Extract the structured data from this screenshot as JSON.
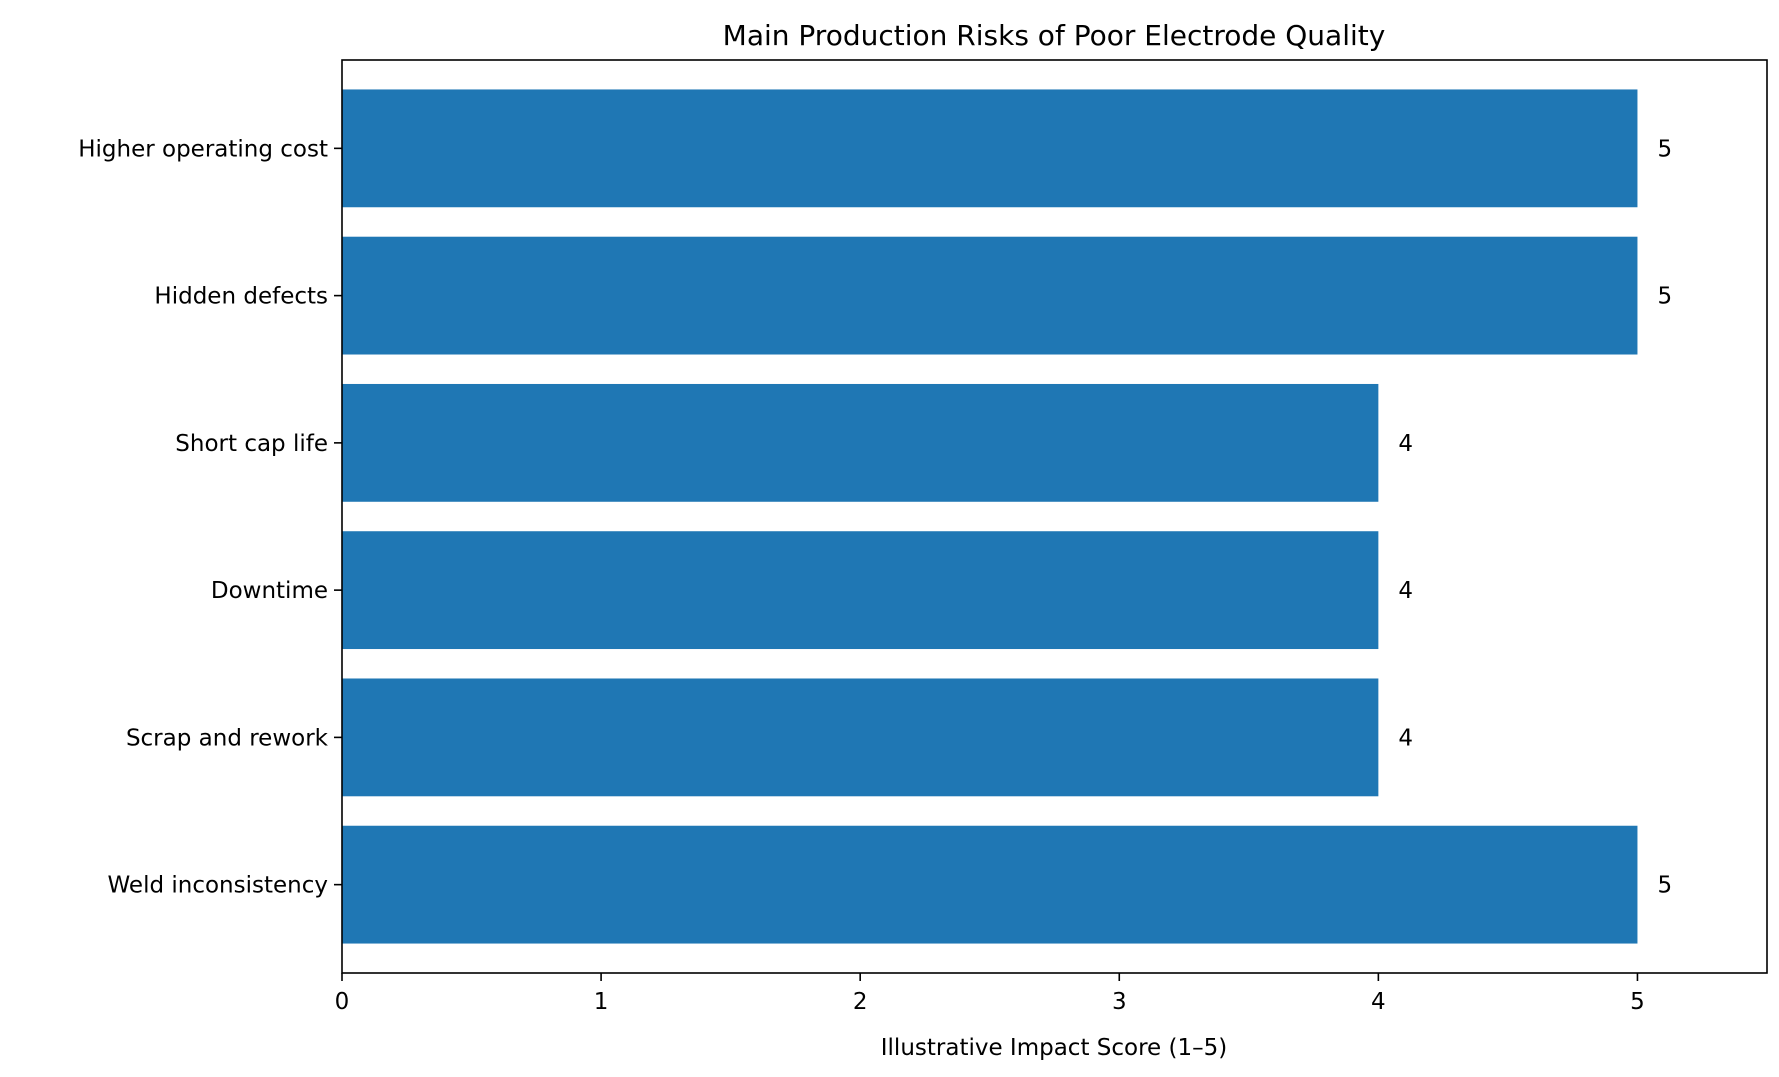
{
  "chart_data": {
    "type": "bar",
    "orientation": "horizontal",
    "title": "Main Production Risks of Poor Electrode Quality",
    "xlabel": "Illustrative Impact Score (1–5)",
    "ylabel": "",
    "categories": [
      "Weld inconsistency",
      "Scrap and rework",
      "Downtime",
      "Short cap life",
      "Hidden defects",
      "Higher operating cost"
    ],
    "values": [
      5,
      4,
      4,
      4,
      5,
      5
    ],
    "xlim": [
      0,
      5.5
    ],
    "xticks": [
      0,
      1,
      2,
      3,
      4,
      5
    ],
    "grid": false,
    "bar_color": "#1f77b4",
    "data_labels": true
  }
}
